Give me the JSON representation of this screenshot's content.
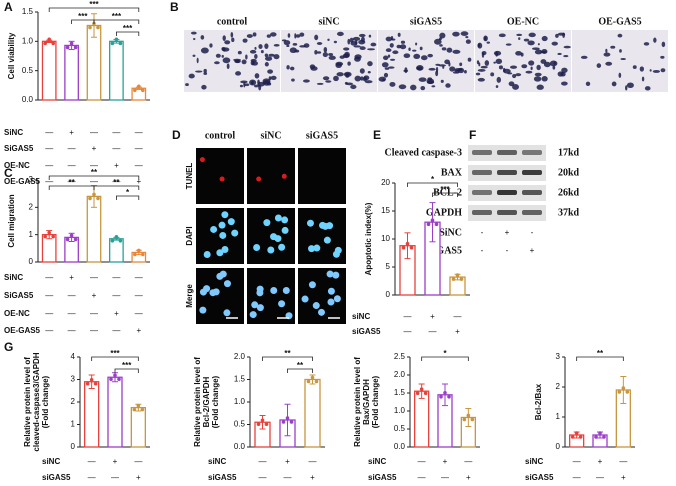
{
  "panels": [
    "A",
    "B",
    "C",
    "D",
    "E",
    "F",
    "G"
  ],
  "images": {
    "B": {
      "labels": [
        "control",
        "siNC",
        "siGAS5",
        "OE-NC",
        "OE-GAS5"
      ]
    },
    "D": {
      "columns": [
        "control",
        "siNC",
        "siGAS5"
      ],
      "rows": [
        "TUNEL",
        "DAPI",
        "Merge"
      ]
    },
    "F": {
      "proteins": [
        "Cleaved caspase-3",
        "BAX",
        "BCL-2",
        "GAPDH"
      ],
      "sizes": [
        "17kd",
        "20kd",
        "26kd",
        "37kd"
      ],
      "conditions": [
        {
          "name": "SiNC",
          "marks": [
            "-",
            "+",
            "-"
          ]
        },
        {
          "name": "SiGAS5",
          "marks": [
            "-",
            "-",
            "+"
          ]
        }
      ]
    }
  },
  "chart_data": [
    {
      "type": "bar",
      "y_label": [
        "Cell viability"
      ],
      "values": [
        1.0,
        0.93,
        1.27,
        1.0,
        0.2
      ],
      "errors": [
        0.02,
        0.07,
        0.2,
        0.03,
        0.02
      ],
      "colors": [
        "#e8413c",
        "#9b3fc9",
        "#c8963e",
        "#2aa198",
        "#e8873c"
      ],
      "ylim": [
        0,
        1.5
      ],
      "yticks": [
        {
          "value": 0,
          "label": "0.0"
        },
        {
          "value": 0.5,
          "label": "0.5"
        },
        {
          "value": 1,
          "label": "1.0"
        },
        {
          "value": 1.5,
          "label": "1.5"
        }
      ],
      "significance": [
        "***",
        "***",
        "***",
        "***"
      ],
      "conditions": [
        {
          "name": "SiNC",
          "marks": [
            "—",
            "+",
            "—",
            "—",
            "—"
          ]
        },
        {
          "name": "SiGAS5",
          "marks": [
            "—",
            "—",
            "+",
            "—",
            "—"
          ]
        },
        {
          "name": "OE-NC",
          "marks": [
            "—",
            "—",
            "—",
            "+",
            "—"
          ]
        },
        {
          "name": "OE-GAS5",
          "marks": [
            "—",
            "—",
            "—",
            "—",
            "+"
          ]
        }
      ]
    },
    {
      "type": "bar",
      "y_label": [
        "Cell migration"
      ],
      "values": [
        1.0,
        0.9,
        2.4,
        0.85,
        0.35
      ],
      "errors": [
        0.15,
        0.15,
        0.4,
        0.05,
        0.08
      ],
      "colors": [
        "#e8413c",
        "#9b3fc9",
        "#c8963e",
        "#2aa198",
        "#e8873c"
      ],
      "ylim": [
        0,
        3
      ],
      "yticks": [
        0,
        1,
        2,
        3
      ],
      "significance": [
        "**",
        "**",
        "**",
        "*"
      ],
      "conditions": [
        {
          "name": "SiNC",
          "marks": [
            "—",
            "+",
            "—",
            "—",
            "—"
          ]
        },
        {
          "name": "SiGAS5",
          "marks": [
            "—",
            "—",
            "+",
            "—",
            "—"
          ]
        },
        {
          "name": "OE-NC",
          "marks": [
            "—",
            "—",
            "—",
            "+",
            "—"
          ]
        },
        {
          "name": "OE-GAS5",
          "marks": [
            "—",
            "—",
            "—",
            "—",
            "+"
          ]
        }
      ]
    },
    {
      "type": "bar",
      "y_label": [
        "Apoptotic index(%)"
      ],
      "values": [
        8.8,
        13,
        3.2
      ],
      "errors": [
        2.3,
        3.5,
        0.5
      ],
      "colors": [
        "#e8413c",
        "#9b3fc9",
        "#c8963e"
      ],
      "ylim": [
        0,
        20
      ],
      "yticks": [
        0,
        5,
        10,
        15,
        20
      ],
      "significance": [
        "*",
        "***"
      ],
      "conditions": [
        {
          "name": "siNC",
          "marks": [
            "—",
            "+",
            "—"
          ]
        },
        {
          "name": "siGAS5",
          "marks": [
            "—",
            "—",
            "+"
          ]
        }
      ]
    },
    {
      "type": "bar",
      "y_label": [
        "Relative protein level of",
        "cleaved-caspase3/GAPDH",
        "(Fold change)"
      ],
      "values": [
        2.9,
        3.1,
        1.75
      ],
      "errors": [
        0.3,
        0.2,
        0.15
      ],
      "colors": [
        "#e8413c",
        "#9b3fc9",
        "#c8963e"
      ],
      "ylim": [
        0,
        4
      ],
      "yticks": [
        0,
        1,
        2,
        3,
        4
      ],
      "significance": [
        "***",
        "***"
      ],
      "conditions": [
        {
          "name": "siNC",
          "marks": [
            "—",
            "+",
            "—"
          ]
        },
        {
          "name": "siGAS5",
          "marks": [
            "—",
            "—",
            "+"
          ]
        }
      ]
    },
    {
      "type": "bar",
      "y_label": [
        "Relative protein level of",
        "Bcl-2/GAPDH",
        "(Fold change)"
      ],
      "values": [
        0.55,
        0.6,
        1.5
      ],
      "errors": [
        0.15,
        0.35,
        0.1
      ],
      "colors": [
        "#e8413c",
        "#9b3fc9",
        "#c8963e"
      ],
      "ylim": [
        0,
        2
      ],
      "yticks": [
        {
          "value": 0,
          "label": "0.0"
        },
        {
          "value": 0.5,
          "label": "0.5"
        },
        {
          "value": 1,
          "label": "1.0"
        },
        {
          "value": 1.5,
          "label": "1.5"
        },
        {
          "value": 2,
          "label": "2.0"
        }
      ],
      "significance": [
        "**",
        "**"
      ],
      "conditions": [
        {
          "name": "siNC",
          "marks": [
            "—",
            "+",
            "—"
          ]
        },
        {
          "name": "siGAS5",
          "marks": [
            "—",
            "—",
            "+"
          ]
        }
      ]
    },
    {
      "type": "bar",
      "y_label": [
        "Relative protein level of",
        "Bax/GAPDH",
        "(Fold change)"
      ],
      "values": [
        1.55,
        1.45,
        0.82
      ],
      "errors": [
        0.2,
        0.3,
        0.25
      ],
      "colors": [
        "#e8413c",
        "#9b3fc9",
        "#c8963e"
      ],
      "ylim": [
        0,
        2.5
      ],
      "yticks": [
        {
          "value": 0,
          "label": "0.0"
        },
        {
          "value": 0.5,
          "label": "0.5"
        },
        {
          "value": 1,
          "label": "1.0"
        },
        {
          "value": 1.5,
          "label": "1.5"
        },
        {
          "value": 2,
          "label": "2.0"
        },
        {
          "value": 2.5,
          "label": "2.5"
        }
      ],
      "significance": [
        "*"
      ],
      "conditions": [
        {
          "name": "siNC",
          "marks": [
            "—",
            "+",
            "—"
          ]
        },
        {
          "name": "siGAS5",
          "marks": [
            "—",
            "—",
            "+"
          ]
        }
      ]
    },
    {
      "type": "bar",
      "y_label": [
        "Bcl-2/Bax"
      ],
      "values": [
        0.4,
        0.4,
        1.9
      ],
      "errors": [
        0.1,
        0.1,
        0.45
      ],
      "colors": [
        "#e8413c",
        "#9b3fc9",
        "#c8963e"
      ],
      "ylim": [
        0,
        3
      ],
      "yticks": [
        0,
        1,
        2,
        3
      ],
      "significance": [
        "**"
      ],
      "conditions": [
        {
          "name": "siNC",
          "marks": [
            "—",
            "+",
            "—"
          ]
        },
        {
          "name": "siGAS5",
          "marks": [
            "—",
            "—",
            "+"
          ]
        }
      ]
    }
  ]
}
